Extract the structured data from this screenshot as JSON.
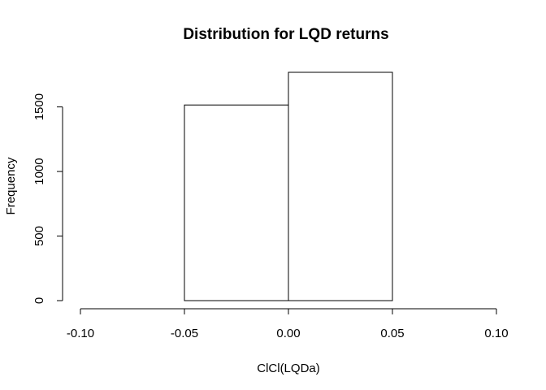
{
  "chart_data": {
    "type": "bar",
    "title": "Distribution for LQD returns",
    "xlabel": "ClCl(LQDa)",
    "ylabel": "Frequency",
    "bins": [
      {
        "from": -0.1,
        "to": -0.05,
        "count": 0
      },
      {
        "from": -0.05,
        "to": 0.0,
        "count": 1515
      },
      {
        "from": 0.0,
        "to": 0.05,
        "count": 1768
      },
      {
        "from": 0.05,
        "to": 0.1,
        "count": 0
      }
    ],
    "xlim": [
      -0.1,
      0.1
    ],
    "ylim": [
      0,
      1768
    ],
    "x_ticks": [
      -0.1,
      -0.05,
      0.0,
      0.05,
      0.1
    ],
    "x_tick_labels": [
      "-0.10",
      "-0.05",
      "0.00",
      "0.05",
      "0.10"
    ],
    "y_ticks": [
      0,
      500,
      1000,
      1500
    ],
    "y_tick_labels": [
      "0",
      "500",
      "1000",
      "1500"
    ],
    "grid": false,
    "colors": {
      "bar_fill": "#ffffff",
      "bar_stroke": "#000000",
      "axis": "#000000"
    }
  }
}
